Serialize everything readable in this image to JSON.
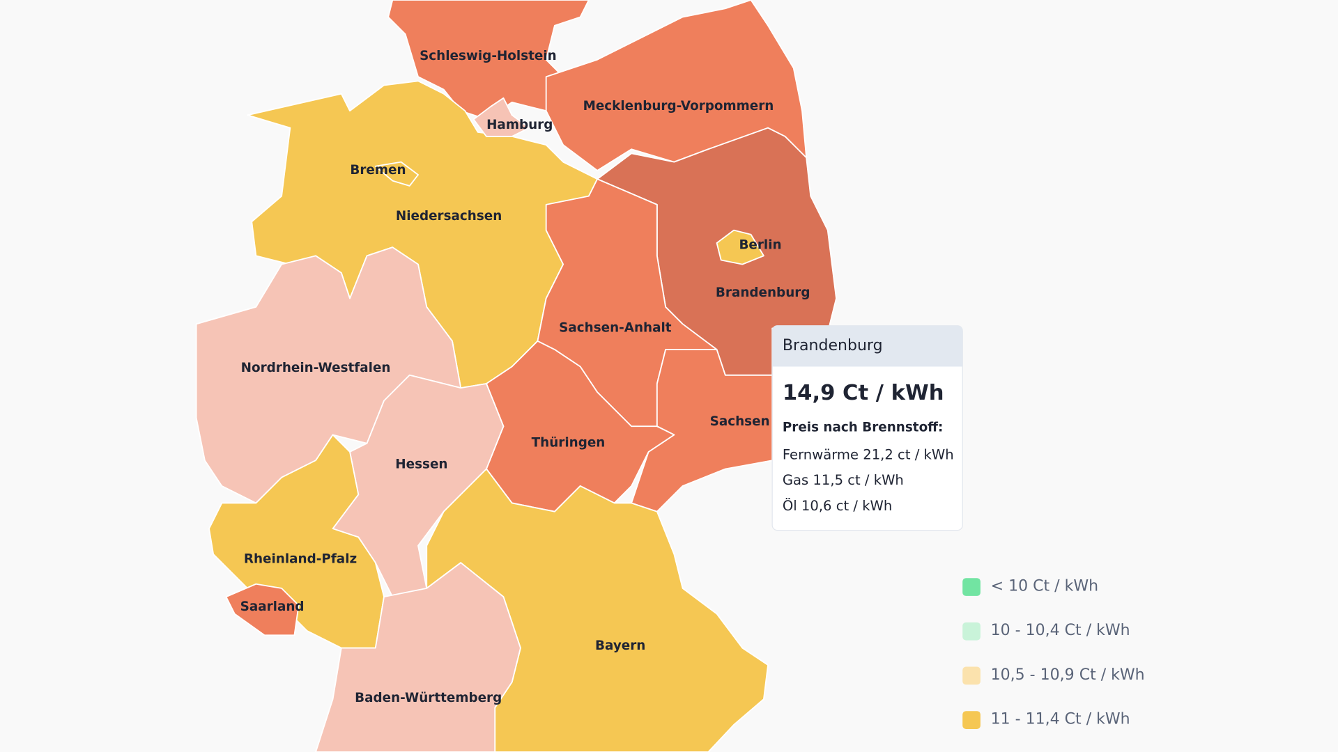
{
  "regions": [
    {
      "label": "Schleswig-Holstein"
    },
    {
      "label": "Mecklenburg-Vorpommern"
    },
    {
      "label": "Hamburg"
    },
    {
      "label": "Bremen"
    },
    {
      "label": "Niedersachsen"
    },
    {
      "label": "Berlin"
    },
    {
      "label": "Brandenburg"
    },
    {
      "label": "Sachsen-Anhalt"
    },
    {
      "label": "Nordrhein-Westfalen"
    },
    {
      "label": "Sachsen"
    },
    {
      "label": "Thüringen"
    },
    {
      "label": "Hessen"
    },
    {
      "label": "Rheinland-Pfalz"
    },
    {
      "label": "Saarland"
    },
    {
      "label": "Bayern"
    },
    {
      "label": "Baden-Württemberg"
    }
  ],
  "tooltip": {
    "title": "Brandenburg",
    "value": "14,9 Ct / kWh",
    "subtitle": "Preis nach Brennstoff:",
    "lines": [
      "Fernwärme 21,2 ct / kWh",
      "Gas 11,5 ct / kWh",
      "Öl 10,6 ct / kWh"
    ]
  },
  "legend": [
    {
      "label": "< 10 Ct / kWh",
      "color": "#72e4a2"
    },
    {
      "label": "10 - 10,4 Ct / kWh",
      "color": "#c9f3d9"
    },
    {
      "label": "10,5 - 10,9 Ct / kWh",
      "color": "#fbe2ad"
    },
    {
      "label": "11 - 11,4 Ct / kWh",
      "color": "#f5c753"
    }
  ]
}
